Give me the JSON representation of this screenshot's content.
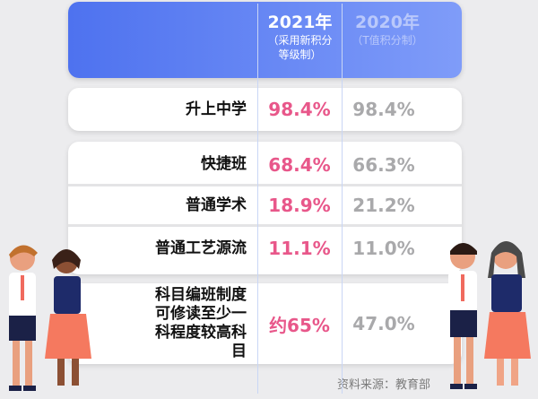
{
  "header": {
    "col2021_year": "2021年",
    "col2021_note": "（采用新积分等级制）",
    "col2020_year": "2020年",
    "col2020_note": "（T值积分制）"
  },
  "rows": [
    {
      "label": "升上中学",
      "v2021": "98.4%",
      "v2020": "98.4%"
    },
    {
      "label": "快捷班",
      "v2021": "68.4%",
      "v2020": "66.3%"
    },
    {
      "label": "普通学术",
      "v2021": "18.9%",
      "v2020": "21.2%"
    },
    {
      "label": "普通工艺源流",
      "v2021": "11.1%",
      "v2020": "11.0%"
    },
    {
      "label": "科目编班制度可修读至少一科程度较高科目",
      "v2021": "约65%",
      "v2020": "47.0%"
    }
  ],
  "source": "资料来源：教育部",
  "colors": {
    "header": "#5a7cf2",
    "v2021": "#e8578a",
    "v2020": "#a9a9ab"
  }
}
